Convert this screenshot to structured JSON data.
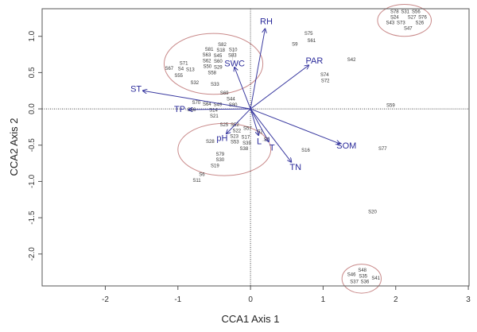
{
  "chart_data": {
    "type": "scatter",
    "subtype": "cca-biplot",
    "xlabel": "CCA1 Axis 1",
    "ylabel": "CCA2 Axis 2",
    "xlim": [
      -2.87,
      3.01
    ],
    "ylim": [
      -2.44,
      1.38
    ],
    "xticks": [
      "-2",
      "-1",
      "0",
      "1",
      "2",
      "3"
    ],
    "xtick_values": [
      -2,
      -1,
      0,
      1,
      2,
      3
    ],
    "yticks": [
      "-2.0",
      "-1.5",
      "-1.0",
      "-0.5",
      "0.0",
      "0.5",
      "1.0"
    ],
    "ytick_values": [
      -2.0,
      -1.5,
      -1.0,
      -0.5,
      0.0,
      0.5,
      1.0
    ],
    "grid": false,
    "zero_lines": true,
    "colors": {
      "vectors": "#3a3aa0",
      "vector_labels": "#2a2a9a",
      "sites": "#333333",
      "ellipses": "#c98a8a"
    },
    "env_vectors": [
      {
        "label": "RH",
        "x": 0.2,
        "y": 1.1
      },
      {
        "label": "PAR",
        "x": 0.8,
        "y": 0.6
      },
      {
        "label": "SWC",
        "x": -0.22,
        "y": 0.57
      },
      {
        "label": "ST",
        "x": -1.48,
        "y": 0.25
      },
      {
        "label": "TP",
        "x": -0.85,
        "y": -0.01
      },
      {
        "label": "pH",
        "x": -0.33,
        "y": -0.34
      },
      {
        "label": "L",
        "x": 0.11,
        "y": -0.36
      },
      {
        "label": "T",
        "x": 0.25,
        "y": -0.45
      },
      {
        "label": "TN",
        "x": 0.56,
        "y": -0.73
      },
      {
        "label": "SOM",
        "x": 1.23,
        "y": -0.48
      }
    ],
    "sites": [
      {
        "label": "S82",
        "x": -0.39,
        "y": 0.84
      },
      {
        "label": "S81",
        "x": -0.57,
        "y": 0.81
      },
      {
        "label": "S18",
        "x": -0.41,
        "y": 0.8
      },
      {
        "label": "S10",
        "x": -0.24,
        "y": 0.74
      },
      {
        "label": "S63",
        "x": -0.58,
        "y": 0.71
      },
      {
        "label": "S45",
        "x": -0.44,
        "y": 0.71
      },
      {
        "label": "S62",
        "x": -0.58,
        "y": 0.66
      },
      {
        "label": "S60",
        "x": -0.43,
        "y": 0.66
      },
      {
        "label": "S83",
        "x": -0.25,
        "y": 0.66
      },
      {
        "label": "S50",
        "x": -0.57,
        "y": 0.59
      },
      {
        "label": "S29",
        "x": -0.42,
        "y": 0.59
      },
      {
        "label": "S71",
        "x": -0.92,
        "y": 0.62
      },
      {
        "label": "S67",
        "x": -1.12,
        "y": 0.55
      },
      {
        "label": "S4",
        "x": -0.95,
        "y": 0.54
      },
      {
        "label": "S13",
        "x": -0.84,
        "y": 0.53
      },
      {
        "label": "S55",
        "x": -0.99,
        "y": 0.45
      },
      {
        "label": "S58",
        "x": -0.53,
        "y": 0.51
      },
      {
        "label": "S32",
        "x": -0.77,
        "y": 0.35
      },
      {
        "label": "S33",
        "x": -0.49,
        "y": 0.33
      },
      {
        "label": "S69",
        "x": -0.36,
        "y": 0.21
      },
      {
        "label": "S44",
        "x": -0.27,
        "y": 0.12
      },
      {
        "label": "S70",
        "x": -0.71,
        "y": 0.08
      },
      {
        "label": "S64",
        "x": -0.6,
        "y": 0.05
      },
      {
        "label": "S49",
        "x": -0.49,
        "y": 0.05
      },
      {
        "label": "S80",
        "x": -0.24,
        "y": 0.05
      },
      {
        "label": "S66",
        "x": -0.9,
        "y": -0.02
      },
      {
        "label": "S14",
        "x": -0.51,
        "y": -0.02
      },
      {
        "label": "S21",
        "x": -0.5,
        "y": -0.11
      },
      {
        "label": "S25",
        "x": -0.34,
        "y": -0.23
      },
      {
        "label": "S52",
        "x": -0.24,
        "y": -0.23
      },
      {
        "label": "S57",
        "x": -0.05,
        "y": -0.28
      },
      {
        "label": "S2",
        "x": 0.13,
        "y": -0.32
      },
      {
        "label": "S22",
        "x": -0.18,
        "y": -0.32
      },
      {
        "label": "S23",
        "x": -0.21,
        "y": -0.39
      },
      {
        "label": "S53",
        "x": -0.21,
        "y": -0.45
      },
      {
        "label": "S17",
        "x": -0.09,
        "y": -0.43
      },
      {
        "label": "S39",
        "x": -0.05,
        "y": -0.47
      },
      {
        "label": "S38",
        "x": -0.09,
        "y": -0.54
      },
      {
        "label": "S28",
        "x": -0.53,
        "y": -0.46
      },
      {
        "label": "S5",
        "x": 0.16,
        "y": -0.44
      },
      {
        "label": "S79",
        "x": -0.42,
        "y": -0.66
      },
      {
        "label": "S30",
        "x": -0.42,
        "y": -0.7
      },
      {
        "label": "S19",
        "x": -0.49,
        "y": -0.78
      },
      {
        "label": "S6",
        "x": -0.67,
        "y": -0.92
      },
      {
        "label": "S11",
        "x": -0.74,
        "y": -0.99
      },
      {
        "label": "S75",
        "x": 0.8,
        "y": 1.03
      },
      {
        "label": "S61",
        "x": 0.84,
        "y": 0.93
      },
      {
        "label": "S9",
        "x": 0.61,
        "y": 0.88
      },
      {
        "label": "S42",
        "x": 1.39,
        "y": 0.67
      },
      {
        "label": "S74",
        "x": 1.02,
        "y": 0.45
      },
      {
        "label": "S72",
        "x": 1.03,
        "y": 0.39
      },
      {
        "label": "S59",
        "x": 1.93,
        "y": 0.04
      },
      {
        "label": "S16",
        "x": 0.76,
        "y": -0.58
      },
      {
        "label": "S77",
        "x": 1.82,
        "y": -0.56
      },
      {
        "label": "S20",
        "x": 1.68,
        "y": -1.43
      },
      {
        "label": "S78",
        "x": 2.02,
        "y": 1.37
      },
      {
        "label": "S31",
        "x": 2.12,
        "y": 1.37
      },
      {
        "label": "S56",
        "x": 2.25,
        "y": 1.37
      },
      {
        "label": "S24",
        "x": 1.99,
        "y": 1.31
      },
      {
        "label": "S43",
        "x": 1.97,
        "y": 1.27
      },
      {
        "label": "S27",
        "x": 2.21,
        "y": 1.28
      },
      {
        "label": "S76",
        "x": 2.33,
        "y": 1.3
      },
      {
        "label": "S73",
        "x": 2.08,
        "y": 1.22
      },
      {
        "label": "S26",
        "x": 2.33,
        "y": 1.19
      },
      {
        "label": "S47",
        "x": 2.17,
        "y": 1.15
      },
      {
        "label": "S48",
        "x": 1.52,
        "y": -2.25
      },
      {
        "label": "S46",
        "x": 1.41,
        "y": -2.29
      },
      {
        "label": "S35",
        "x": 1.56,
        "y": -2.32
      },
      {
        "label": "S41",
        "x": 1.69,
        "y": -2.34
      },
      {
        "label": "S36",
        "x": 1.58,
        "y": -2.37
      },
      {
        "label": "S37",
        "x": 1.45,
        "y": -2.42
      }
    ],
    "ellipses": [
      {
        "cx": -0.51,
        "cy": 0.62,
        "rx": 0.68,
        "ry": 0.42
      },
      {
        "cx": -0.36,
        "cy": -0.56,
        "rx": 0.64,
        "ry": 0.36
      },
      {
        "cx": 2.12,
        "cy": 1.22,
        "rx": 0.37,
        "ry": 0.22
      },
      {
        "cx": 1.53,
        "cy": -2.34,
        "rx": 0.27,
        "ry": 0.2
      }
    ]
  }
}
